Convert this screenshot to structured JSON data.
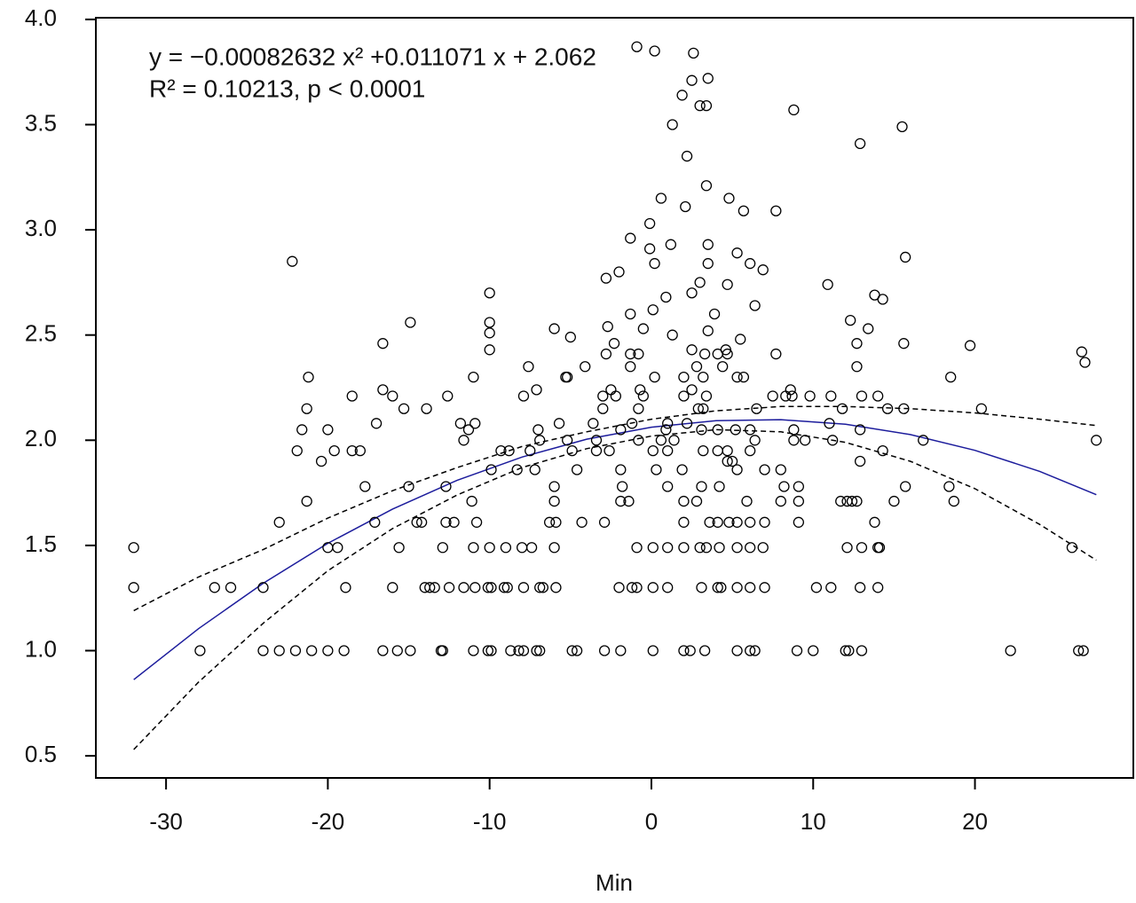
{
  "chart_data": {
    "type": "scatter",
    "xlabel": "Min",
    "annotations": [
      "y = −0.00082632 x² +0.011071 x + 2.062",
      "R² = 0.10213,  p < 0.0001"
    ],
    "xlim": [
      -34.34,
      29.79
    ],
    "ylim": [
      0.395,
      4.008
    ],
    "xticks": [
      -30,
      -20,
      -10,
      0,
      10,
      20
    ],
    "yticks": [
      0.5,
      {
        "value": 1,
        "label": "1.0"
      },
      1.5,
      {
        "value": 2,
        "label": "2.0"
      },
      2.5,
      {
        "value": 3,
        "label": "3.0"
      },
      3.5,
      {
        "value": 4,
        "label": "4.0"
      }
    ],
    "grid": false,
    "series": [
      {
        "color": "#000000",
        "x": [
          -27.9,
          -24.0,
          -23.0,
          -22.0,
          -21.0,
          -20.0,
          -19.0,
          -16.6,
          -15.7,
          -14.9,
          -13.0,
          -12.9,
          -11.0,
          -10.1,
          -9.9,
          -8.7,
          -8.2,
          -7.9,
          -7.1,
          -6.9,
          -4.9,
          -4.6,
          -2.9,
          -1.9,
          0.1,
          2.0,
          2.4,
          3.3,
          5.3,
          6.1,
          6.4,
          9.0,
          10.0,
          12.0,
          12.2,
          13.0,
          22.2,
          26.4,
          26.7,
          -32.0,
          -27.0,
          -26.0,
          -24.0,
          -18.9,
          -16.0,
          -14.0,
          -13.7,
          -13.4,
          -12.5,
          -11.6,
          -10.9,
          -10.1,
          -9.9,
          -9.1,
          -8.9,
          -7.9,
          -6.9,
          -6.7,
          -5.9,
          -2.0,
          -1.2,
          -0.9,
          0.1,
          1.0,
          3.1,
          4.1,
          4.3,
          5.3,
          6.1,
          7.0,
          10.2,
          11.1,
          12.9,
          14.0,
          -32.0,
          -20.0,
          -19.4,
          -15.6,
          -12.9,
          -11.0,
          -10.0,
          -9.0,
          -8.0,
          -7.4,
          -6.0,
          -0.9,
          0.1,
          1.0,
          2.0,
          3.0,
          3.4,
          4.2,
          5.3,
          6.1,
          6.9,
          12.1,
          13.0,
          14.0,
          14.1,
          26.0,
          -23.0,
          -17.1,
          -14.5,
          -14.2,
          -12.7,
          -12.2,
          -10.8,
          -6.3,
          -5.9,
          -4.3,
          -2.9,
          2.0,
          3.6,
          4.1,
          4.8,
          5.3,
          6.1,
          7.0,
          9.1,
          13.8,
          -21.3,
          -11.1,
          -6.0,
          -1.9,
          -1.4,
          2.0,
          2.8,
          5.9,
          8.0,
          9.1,
          11.7,
          12.1,
          12.4,
          12.7,
          15.0,
          18.7,
          -17.7,
          -15.0,
          -12.7,
          -6.0,
          -1.8,
          1.0,
          3.1,
          4.2,
          8.2,
          9.1,
          15.7,
          18.4,
          -9.9,
          -8.3,
          -7.2,
          -4.6,
          -1.9,
          0.3,
          1.9,
          5.3,
          7.0,
          8.0,
          -21.9,
          -19.6,
          -18.5,
          -18.0,
          -9.3,
          -8.8,
          -7.5,
          -4.9,
          -3.4,
          -2.6,
          0.1,
          1.0,
          3.2,
          4.1,
          4.7,
          6.1,
          14.3,
          -20.4,
          4.7,
          5.0,
          12.9,
          -11.6,
          -6.9,
          -5.2,
          -3.4,
          -0.8,
          0.6,
          1.4,
          6.4,
          8.8,
          9.5,
          11.2,
          16.8,
          27.5,
          -21.6,
          -20.0,
          -11.3,
          -7.0,
          -1.9,
          0.9,
          3.1,
          4.1,
          5.2,
          6.1,
          8.8,
          12.9,
          -17.0,
          -11.8,
          -10.9,
          -5.7,
          -3.6,
          -1.2,
          1.0,
          2.2,
          11.0,
          -21.3,
          -15.3,
          -13.9,
          -3.0,
          -0.8,
          2.9,
          3.2,
          6.5,
          11.8,
          14.6,
          15.6,
          20.4,
          -18.5,
          -16.0,
          -12.6,
          -7.9,
          -3.0,
          -2.2,
          -0.5,
          2.0,
          3.4,
          7.5,
          8.3,
          8.7,
          9.8,
          11.1,
          13.0,
          14.0,
          -16.6,
          -7.1,
          -2.5,
          -0.7,
          2.5,
          8.6,
          -21.2,
          -11.0,
          -5.3,
          -5.2,
          0.2,
          2.0,
          3.2,
          5.3,
          5.7,
          18.5,
          -7.6,
          -4.1,
          -1.3,
          2.8,
          4.4,
          12.7,
          -2.8,
          -1.3,
          -0.8,
          3.3,
          4.1,
          4.7,
          7.7,
          26.6,
          26.8,
          -16.6,
          -10.0,
          -2.3,
          2.5,
          4.6,
          12.7,
          15.6,
          19.7,
          -14.9,
          -10.0,
          -10.0,
          -6.0,
          -5.0,
          -2.7,
          -0.5,
          1.3,
          3.5,
          5.5,
          12.3,
          13.4,
          -10.0,
          -2.8,
          -1.3,
          0.1,
          0.9,
          2.5,
          3.0,
          3.9,
          4.7,
          6.4,
          10.9,
          13.8,
          14.3,
          -2.0,
          -22.2,
          0.2,
          3.5,
          5.3,
          6.1,
          6.9,
          15.7,
          -1.3,
          3.5,
          -0.1,
          1.2,
          -0.1,
          0.6,
          2.1,
          3.4,
          4.8,
          5.7,
          7.7,
          2.2,
          1.3,
          12.9,
          15.5,
          1.9,
          3.0,
          3.4,
          2.5,
          3.5,
          -0.9,
          0.2,
          2.6,
          8.8
        ],
        "values": [
          1.0,
          1.0,
          1.0,
          1.0,
          1.0,
          1.0,
          1.0,
          1.0,
          1.0,
          1.0,
          1.0,
          1.0,
          1.0,
          1.0,
          1.0,
          1.0,
          1.0,
          1.0,
          1.0,
          1.0,
          1.0,
          1.0,
          1.0,
          1.0,
          1.0,
          1.0,
          1.0,
          1.0,
          1.0,
          1.0,
          1.0,
          1.0,
          1.0,
          1.0,
          1.0,
          1.0,
          1.0,
          1.0,
          1.0,
          1.3,
          1.3,
          1.3,
          1.3,
          1.3,
          1.3,
          1.3,
          1.3,
          1.3,
          1.3,
          1.3,
          1.3,
          1.3,
          1.3,
          1.3,
          1.3,
          1.3,
          1.3,
          1.3,
          1.3,
          1.3,
          1.3,
          1.3,
          1.3,
          1.3,
          1.3,
          1.3,
          1.3,
          1.3,
          1.3,
          1.3,
          1.3,
          1.3,
          1.3,
          1.3,
          1.49,
          1.49,
          1.49,
          1.49,
          1.49,
          1.49,
          1.49,
          1.49,
          1.49,
          1.49,
          1.49,
          1.49,
          1.49,
          1.49,
          1.49,
          1.49,
          1.49,
          1.49,
          1.49,
          1.49,
          1.49,
          1.49,
          1.49,
          1.49,
          1.49,
          1.49,
          1.61,
          1.61,
          1.61,
          1.61,
          1.61,
          1.61,
          1.61,
          1.61,
          1.61,
          1.61,
          1.61,
          1.61,
          1.61,
          1.61,
          1.61,
          1.61,
          1.61,
          1.61,
          1.61,
          1.61,
          1.71,
          1.71,
          1.71,
          1.71,
          1.71,
          1.71,
          1.71,
          1.71,
          1.71,
          1.71,
          1.71,
          1.71,
          1.71,
          1.71,
          1.71,
          1.71,
          1.78,
          1.78,
          1.78,
          1.78,
          1.78,
          1.78,
          1.78,
          1.78,
          1.78,
          1.78,
          1.78,
          1.78,
          1.86,
          1.86,
          1.86,
          1.86,
          1.86,
          1.86,
          1.86,
          1.86,
          1.86,
          1.86,
          1.95,
          1.95,
          1.95,
          1.95,
          1.95,
          1.95,
          1.95,
          1.95,
          1.95,
          1.95,
          1.95,
          1.95,
          1.95,
          1.95,
          1.95,
          1.95,
          1.95,
          1.9,
          1.9,
          1.9,
          1.9,
          2.0,
          2.0,
          2.0,
          2.0,
          2.0,
          2.0,
          2.0,
          2.0,
          2.0,
          2.0,
          2.0,
          2.0,
          2.0,
          2.05,
          2.05,
          2.05,
          2.05,
          2.05,
          2.05,
          2.05,
          2.05,
          2.05,
          2.05,
          2.05,
          2.05,
          2.08,
          2.08,
          2.08,
          2.08,
          2.08,
          2.08,
          2.08,
          2.08,
          2.08,
          2.15,
          2.15,
          2.15,
          2.15,
          2.15,
          2.15,
          2.15,
          2.15,
          2.15,
          2.15,
          2.15,
          2.15,
          2.21,
          2.21,
          2.21,
          2.21,
          2.21,
          2.21,
          2.21,
          2.21,
          2.21,
          2.21,
          2.21,
          2.21,
          2.21,
          2.21,
          2.21,
          2.21,
          2.24,
          2.24,
          2.24,
          2.24,
          2.24,
          2.24,
          2.3,
          2.3,
          2.3,
          2.3,
          2.3,
          2.3,
          2.3,
          2.3,
          2.3,
          2.3,
          2.35,
          2.35,
          2.35,
          2.35,
          2.35,
          2.35,
          2.41,
          2.41,
          2.41,
          2.41,
          2.41,
          2.41,
          2.41,
          2.42,
          2.37,
          2.46,
          2.43,
          2.46,
          2.43,
          2.43,
          2.46,
          2.46,
          2.45,
          2.56,
          2.56,
          2.51,
          2.53,
          2.49,
          2.54,
          2.53,
          2.5,
          2.52,
          2.48,
          2.57,
          2.53,
          2.7,
          2.77,
          2.6,
          2.62,
          2.68,
          2.7,
          2.75,
          2.6,
          2.74,
          2.64,
          2.74,
          2.69,
          2.67,
          2.8,
          2.85,
          2.84,
          2.84,
          2.89,
          2.84,
          2.81,
          2.87,
          2.96,
          2.93,
          2.91,
          2.93,
          3.03,
          3.15,
          3.11,
          3.21,
          3.15,
          3.09,
          3.09,
          3.35,
          3.5,
          3.41,
          3.49,
          3.64,
          3.59,
          3.59,
          3.71,
          3.72,
          3.87,
          3.85,
          3.84,
          3.57
        ]
      }
    ],
    "lines": [
      {
        "color": "#1c1c9c",
        "dashed": false,
        "x": [
          -32,
          -28,
          -24,
          -20,
          -16,
          -12,
          -8,
          -4,
          0,
          4,
          8,
          12,
          16,
          20,
          24,
          27.5
        ],
        "values": [
          0.862,
          1.104,
          1.32,
          1.51,
          1.673,
          1.81,
          1.92,
          2.005,
          2.062,
          2.093,
          2.098,
          2.076,
          2.027,
          1.952,
          1.852,
          1.741
        ]
      },
      {
        "color": "#000000",
        "dashed": true,
        "x": [
          -32,
          -28,
          -24,
          -20,
          -16,
          -12,
          -8,
          -4,
          0,
          4,
          8,
          12,
          16,
          20,
          24,
          27.5
        ],
        "values": [
          1.19,
          1.35,
          1.48,
          1.63,
          1.76,
          1.87,
          1.97,
          2.04,
          2.1,
          2.14,
          2.16,
          2.16,
          2.15,
          2.13,
          2.1,
          2.07
        ]
      },
      {
        "color": "#000000",
        "dashed": true,
        "x": [
          -32,
          -28,
          -24,
          -20,
          -16,
          -12,
          -8,
          -4,
          0,
          4,
          8,
          12,
          16,
          20,
          24,
          27.5
        ],
        "values": [
          0.53,
          0.85,
          1.13,
          1.38,
          1.58,
          1.74,
          1.87,
          1.96,
          2.02,
          2.05,
          2.04,
          1.99,
          1.9,
          1.77,
          1.6,
          1.43
        ]
      }
    ]
  }
}
